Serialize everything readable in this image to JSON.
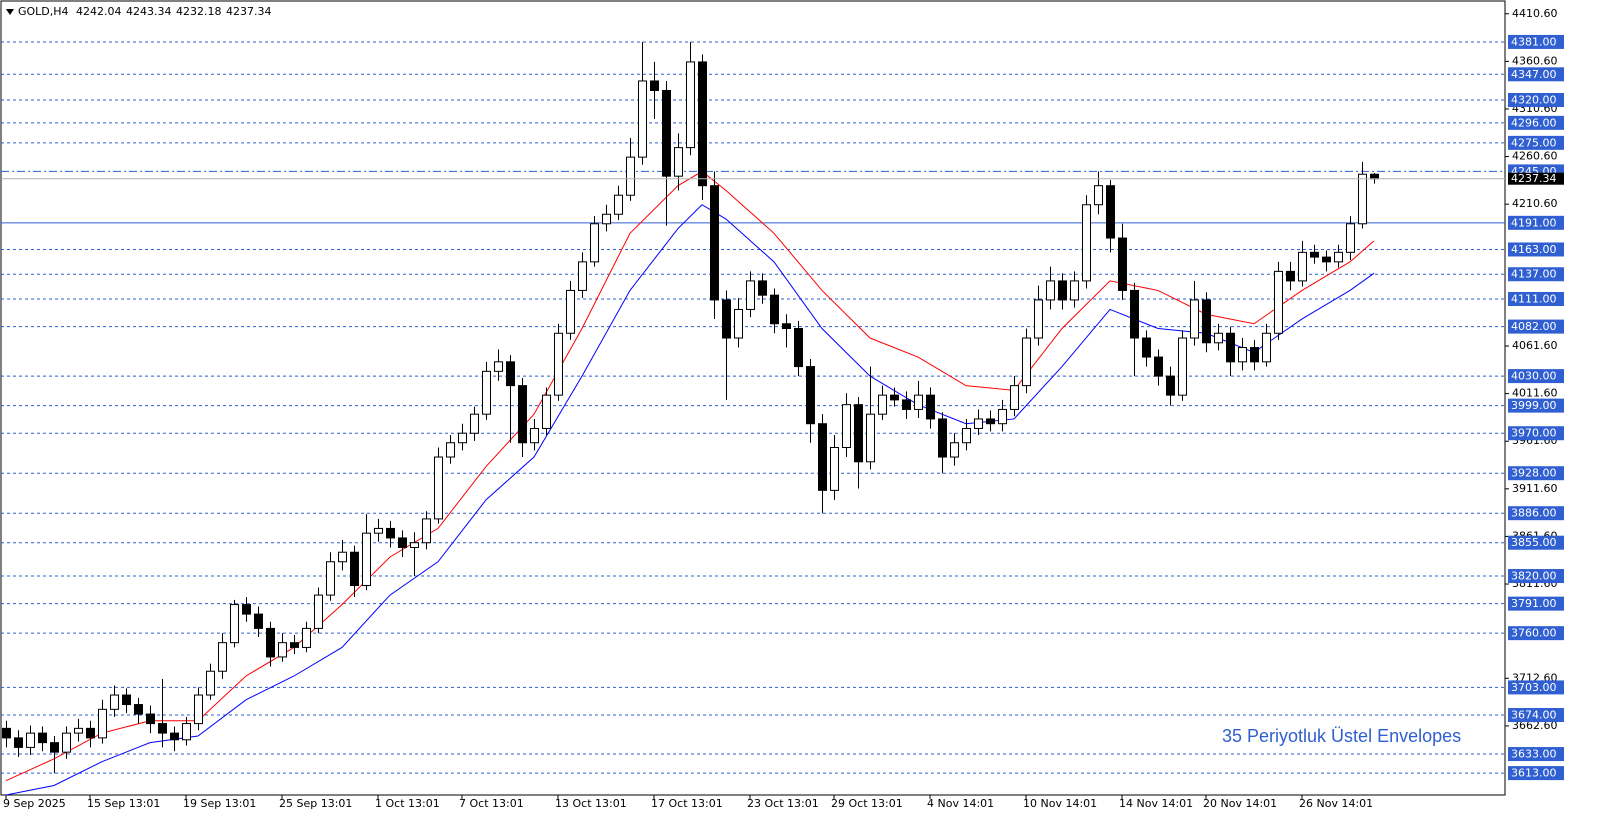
{
  "chart_data": {
    "type": "candlestick",
    "title": "GOLD,H4",
    "annotation": "35 Periyotluk Üstel Envelopes",
    "annotation_color": "#2f5fd0",
    "up_color": "#ffffff",
    "down_color": "#000000",
    "categories": [
      "9 Sep 2025",
      null,
      null,
      null,
      null,
      null,
      null,
      "15 Sep 13:01",
      null,
      null,
      null,
      null,
      null,
      null,
      null,
      "19 Sep 13:01",
      null,
      null,
      null,
      null,
      null,
      null,
      null,
      "25 Sep 13:01",
      null,
      null,
      null,
      null,
      null,
      null,
      null,
      "1 Oct 13:01",
      null,
      null,
      null,
      null,
      null,
      null,
      "7 Oct 13:01",
      null,
      null,
      null,
      null,
      null,
      null,
      null,
      "13 Oct 13:01",
      null,
      null,
      null,
      null,
      null,
      null,
      null,
      "17 Oct 13:01",
      null,
      null,
      null,
      null,
      null,
      null,
      null,
      "23 Oct 13:01",
      null,
      null,
      null,
      null,
      null,
      null,
      "29 Oct 13:01",
      null,
      null,
      null,
      null,
      null,
      null,
      null,
      "4 Nov 14:01",
      null,
      null,
      null,
      null,
      null,
      null,
      null,
      "10 Nov 14:01",
      null,
      null,
      null,
      null,
      null,
      null,
      null,
      "14 Nov 14:01",
      null,
      null,
      null,
      null,
      null,
      null,
      "20 Nov 14:01",
      null,
      null,
      null,
      null,
      null,
      null,
      null,
      "26 Nov 14:01",
      null,
      null,
      null,
      null,
      null,
      null
    ],
    "open": [
      3660,
      3650,
      3640,
      3655,
      3645,
      3635,
      3655,
      3660,
      3650,
      3680,
      3695,
      3685,
      3675,
      3665,
      3655,
      3648,
      3665,
      3695,
      3720,
      3750,
      3790,
      3780,
      3765,
      3735,
      3750,
      3745,
      3765,
      3800,
      3835,
      3845,
      3810,
      3865,
      3870,
      3860,
      3850,
      3855,
      3880,
      3945,
      3960,
      3970,
      3990,
      4035,
      4045,
      4020,
      3960,
      3975,
      4010,
      4075,
      4120,
      4150,
      4190,
      4200,
      4220,
      4260,
      4340,
      4330,
      4240,
      4270,
      4360,
      4230,
      4110,
      4070,
      4100,
      4130,
      4115,
      4085,
      4080,
      4040,
      3980,
      3910,
      3955,
      4000,
      3940,
      3990,
      4010,
      4005,
      3995,
      4010,
      3985,
      3945,
      3960,
      3975,
      3985,
      3980,
      3995,
      4020,
      4070,
      4110,
      4130,
      4110,
      4130,
      4210,
      4230,
      4175,
      4120,
      4070,
      4050,
      4030,
      4010,
      4070,
      4110,
      4065,
      4075,
      4045,
      4060,
      4045,
      4075,
      4140,
      4130,
      4160,
      4155,
      4150,
      4160,
      4190,
      4242.04
    ],
    "high": [
      3668,
      3658,
      3663,
      3662,
      3652,
      3662,
      3670,
      3668,
      3690,
      3705,
      3702,
      3692,
      3684,
      3712,
      3662,
      3672,
      3703,
      3728,
      3760,
      3795,
      3798,
      3788,
      3772,
      3760,
      3758,
      3772,
      3808,
      3845,
      3858,
      3852,
      3885,
      3880,
      3878,
      3868,
      3866,
      3888,
      3955,
      3968,
      3980,
      3998,
      4045,
      4058,
      4052,
      4028,
      3985,
      4018,
      4085,
      4130,
      4160,
      4198,
      4210,
      4230,
      4280,
      4381,
      4360,
      4340,
      4285,
      4381,
      4368,
      4245,
      4120,
      4112,
      4140,
      4138,
      4122,
      4095,
      4088,
      4048,
      3990,
      3968,
      4012,
      4008,
      4040,
      4020,
      4018,
      4014,
      4025,
      4018,
      3992,
      3970,
      3985,
      3995,
      3994,
      4005,
      4030,
      4080,
      4125,
      4145,
      4138,
      4140,
      4220,
      4245,
      4236,
      4190,
      4128,
      4078,
      4058,
      4040,
      4078,
      4130,
      4118,
      4085,
      4082,
      4070,
      4068,
      4085,
      4150,
      4150,
      4172,
      4168,
      4162,
      4168,
      4198,
      4255,
      4243.34
    ],
    "low": [
      3640,
      3630,
      3632,
      3636,
      3613,
      3628,
      3646,
      3640,
      3644,
      3672,
      3676,
      3665,
      3655,
      3640,
      3636,
      3642,
      3658,
      3690,
      3712,
      3745,
      3772,
      3756,
      3725,
      3730,
      3738,
      3740,
      3760,
      3794,
      3826,
      3798,
      3805,
      3856,
      3850,
      3840,
      3820,
      3848,
      3875,
      3938,
      3952,
      3962,
      3984,
      4025,
      3960,
      3945,
      3952,
      3968,
      4004,
      4068,
      4112,
      4145,
      4182,
      4194,
      4214,
      4252,
      4300,
      4188,
      4225,
      4262,
      4215,
      4090,
      4005,
      4060,
      4092,
      4106,
      4075,
      4060,
      4030,
      3960,
      3886,
      3900,
      3945,
      3912,
      3932,
      3984,
      3998,
      3985,
      3986,
      3975,
      3928,
      3936,
      3952,
      3968,
      3972,
      3972,
      3988,
      4012,
      4062,
      4100,
      4100,
      4102,
      4122,
      4200,
      4160,
      4110,
      4030,
      4040,
      4020,
      3999,
      4004,
      4062,
      4055,
      4057,
      4030,
      4036,
      4036,
      4040,
      4068,
      4120,
      4124,
      4148,
      4140,
      4144,
      4152,
      4185,
      4232.18
    ],
    "close": [
      3650,
      3640,
      3655,
      3645,
      3635,
      3655,
      3660,
      3650,
      3680,
      3695,
      3685,
      3675,
      3665,
      3655,
      3648,
      3665,
      3695,
      3720,
      3750,
      3790,
      3780,
      3765,
      3735,
      3750,
      3745,
      3765,
      3800,
      3835,
      3845,
      3810,
      3865,
      3870,
      3860,
      3850,
      3855,
      3880,
      3945,
      3960,
      3970,
      3990,
      4035,
      4045,
      4020,
      3960,
      3975,
      4010,
      4075,
      4120,
      4150,
      4190,
      4200,
      4220,
      4260,
      4340,
      4330,
      4240,
      4270,
      4360,
      4230,
      4110,
      4070,
      4100,
      4130,
      4115,
      4085,
      4080,
      4040,
      3980,
      3910,
      3955,
      4000,
      3940,
      3990,
      4010,
      4005,
      3995,
      4010,
      3985,
      3945,
      3960,
      3975,
      3985,
      3980,
      3995,
      4020,
      4070,
      4110,
      4130,
      4110,
      4130,
      4210,
      4230,
      4175,
      4120,
      4070,
      4050,
      4030,
      4010,
      4070,
      4110,
      4065,
      4075,
      4045,
      4060,
      4045,
      4075,
      4140,
      4130,
      4160,
      4155,
      4150,
      4160,
      4190,
      4242.04,
      4237.34
    ],
    "lines": [
      {
        "color": "#ff0000",
        "x": [
          0,
          4,
          8,
          12,
          16,
          20,
          24,
          28,
          32,
          36,
          40,
          44,
          48,
          52,
          56,
          58,
          60,
          64,
          68,
          72,
          76,
          80,
          84,
          88,
          92,
          96,
          100,
          104,
          108,
          112,
          114
        ],
        "values": [
          3605,
          3628,
          3655,
          3668,
          3668,
          3715,
          3745,
          3790,
          3840,
          3870,
          3935,
          3990,
          4080,
          4180,
          4230,
          4245,
          4225,
          4180,
          4120,
          4070,
          4050,
          4020,
          4015,
          4080,
          4130,
          4120,
          4095,
          4085,
          4120,
          4150,
          4172
        ]
      },
      {
        "color": "#0000ff",
        "x": [
          0,
          4,
          8,
          12,
          16,
          20,
          24,
          28,
          32,
          36,
          40,
          44,
          48,
          52,
          56,
          58,
          60,
          64,
          68,
          72,
          76,
          80,
          84,
          88,
          92,
          96,
          100,
          104,
          108,
          112,
          114
        ],
        "values": [
          3590,
          3600,
          3625,
          3645,
          3652,
          3690,
          3715,
          3745,
          3800,
          3835,
          3900,
          3945,
          4030,
          4120,
          4185,
          4210,
          4195,
          4150,
          4080,
          4030,
          4000,
          3980,
          3985,
          4040,
          4100,
          4080,
          4075,
          4055,
          4090,
          4120,
          4138
        ]
      }
    ],
    "level_color": "#2f5fd0",
    "levels": [
      {
        "value": 4381,
        "label": "4381.00",
        "style": "dashed"
      },
      {
        "value": 4347,
        "label": "4347.00",
        "style": "dashed"
      },
      {
        "value": 4320,
        "label": "4320.00",
        "style": "dashed"
      },
      {
        "value": 4296,
        "label": "4296.00",
        "style": "dashed"
      },
      {
        "value": 4275,
        "label": "4275.00",
        "style": "dashed"
      },
      {
        "value": 4245,
        "label": "4245.00",
        "style": "dashdot"
      },
      {
        "value": 4191,
        "label": "4191.00",
        "style": "solid"
      },
      {
        "value": 4163,
        "label": "4163.00",
        "style": "dashed"
      },
      {
        "value": 4137,
        "label": "4137.00",
        "style": "dashed"
      },
      {
        "value": 4111,
        "label": "4111.00",
        "style": "dashed"
      },
      {
        "value": 4082,
        "label": "4082.00",
        "style": "dashed"
      },
      {
        "value": 4030,
        "label": "4030.00",
        "style": "dashed"
      },
      {
        "value": 3999,
        "label": "3999.00",
        "style": "dashed"
      },
      {
        "value": 3970,
        "label": "3970.00",
        "style": "dashed"
      },
      {
        "value": 3928,
        "label": "3928.00",
        "style": "dashed"
      },
      {
        "value": 3886,
        "label": "3886.00",
        "style": "dashed"
      },
      {
        "value": 3855,
        "label": "3855.00",
        "style": "dashed"
      },
      {
        "value": 3820,
        "label": "3820.00",
        "style": "dashed"
      },
      {
        "value": 3791,
        "label": "3791.00",
        "style": "dashed"
      },
      {
        "value": 3760,
        "label": "3760.00",
        "style": "dashed"
      },
      {
        "value": 3703,
        "label": "3703.00",
        "style": "dashed"
      },
      {
        "value": 3674,
        "label": "3674.00",
        "style": "dashed"
      },
      {
        "value": 3633,
        "label": "3633.00",
        "style": "dashed"
      },
      {
        "value": 3613,
        "label": "3613.00",
        "style": "dashed"
      }
    ],
    "ylim": [
      3590,
      4424
    ],
    "yticks": [
      {
        "value": 4410.6,
        "label": "4410.60"
      },
      {
        "value": 4360.6,
        "label": "4360.60"
      },
      {
        "value": 4310.6,
        "label": "4310.60"
      },
      {
        "value": 4260.6,
        "label": "4260.60"
      },
      {
        "value": 4210.6,
        "label": "4210.60"
      },
      {
        "value": 4061.6,
        "label": "4061.60"
      },
      {
        "value": 4011.6,
        "label": "4011.60"
      },
      {
        "value": 3961.6,
        "label": "3961.60"
      },
      {
        "value": 3911.6,
        "label": "3911.60"
      },
      {
        "value": 3861.6,
        "label": "3861.60"
      },
      {
        "value": 3811.6,
        "label": "3811.60"
      },
      {
        "value": 3712.6,
        "label": "3712.60"
      },
      {
        "value": 3662.6,
        "label": "3662.60"
      }
    ]
  }
}
